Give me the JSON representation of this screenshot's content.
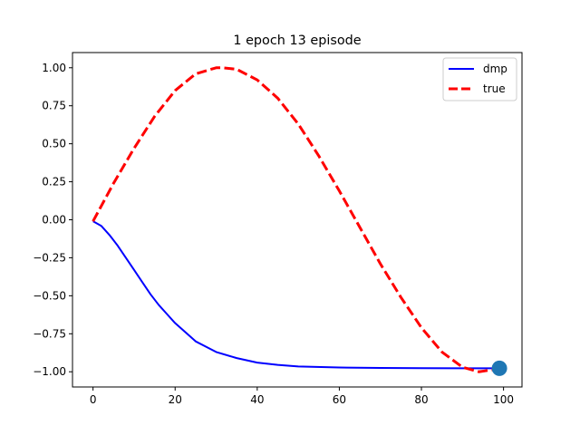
{
  "chart_data": {
    "type": "line",
    "title": "1 epoch 13 episode",
    "xlabel": "",
    "ylabel": "",
    "xlim": [
      -5,
      104.5
    ],
    "ylim": [
      -1.1,
      1.1
    ],
    "xticks": [
      0,
      20,
      40,
      60,
      80,
      100
    ],
    "xtick_labels": [
      "0",
      "20",
      "40",
      "60",
      "80",
      "100"
    ],
    "yticks": [
      1.0,
      0.75,
      0.5,
      0.25,
      0.0,
      -0.25,
      -0.5,
      -0.75,
      -1.0
    ],
    "ytick_labels": [
      "1.00",
      "0.75",
      "0.50",
      "0.25",
      "0.00",
      "−0.25",
      "−0.50",
      "−0.75",
      "−1.00"
    ],
    "grid": false,
    "legend_position": "upper-right",
    "series": [
      {
        "name": "dmp",
        "style": "solid",
        "color": "#0000ff",
        "x": [
          0,
          2,
          4,
          6,
          8,
          10,
          12,
          14,
          16,
          18,
          20,
          25,
          30,
          35,
          40,
          45,
          50,
          60,
          70,
          80,
          90,
          99
        ],
        "y": [
          -0.01,
          -0.04,
          -0.1,
          -0.17,
          -0.25,
          -0.33,
          -0.41,
          -0.49,
          -0.56,
          -0.62,
          -0.68,
          -0.8,
          -0.87,
          -0.91,
          -0.94,
          -0.955,
          -0.965,
          -0.972,
          -0.975,
          -0.976,
          -0.977,
          -0.977
        ]
      },
      {
        "name": "true",
        "style": "dashed",
        "color": "#ff0000",
        "x": [
          0,
          5,
          10,
          15,
          20,
          25,
          30,
          31.5,
          35,
          40,
          45,
          50,
          55,
          60,
          65,
          70,
          75,
          80,
          85,
          90,
          94,
          99
        ],
        "y": [
          -0.01,
          0.24,
          0.47,
          0.68,
          0.85,
          0.96,
          1.0,
          1.0,
          0.99,
          0.92,
          0.8,
          0.63,
          0.42,
          0.19,
          -0.05,
          -0.29,
          -0.51,
          -0.71,
          -0.87,
          -0.97,
          -1.0,
          -0.98
        ]
      }
    ],
    "marker": {
      "x": 99,
      "y": -0.977,
      "color": "#1f77b4"
    }
  }
}
